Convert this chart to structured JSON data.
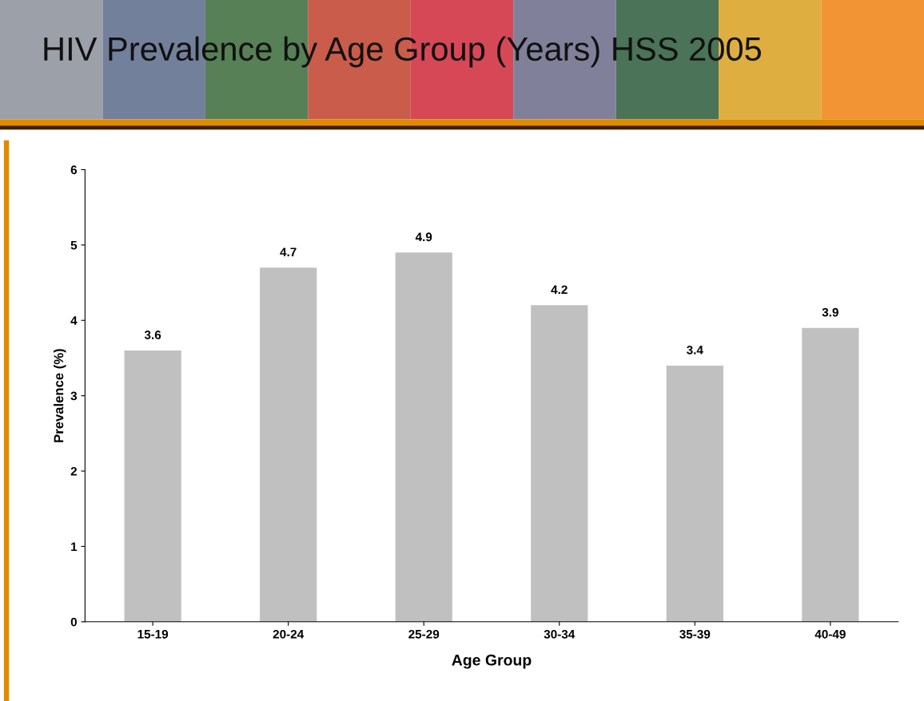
{
  "chart_data": {
    "type": "bar",
    "title": "HIV Prevalence by Age Group (Years) HSS 2005",
    "xlabel": "Age Group",
    "ylabel": "Prevalence (%)",
    "categories": [
      "15-19",
      "20-24",
      "25-29",
      "30-34",
      "35-39",
      "40-49"
    ],
    "values": [
      3.6,
      4.7,
      4.9,
      4.2,
      3.4,
      3.9
    ],
    "color": "#c0c0c0",
    "ylim": [
      0,
      6
    ],
    "yticks": [
      0,
      1,
      2,
      3,
      4,
      5,
      6
    ],
    "grid": false,
    "data_labels": true
  }
}
